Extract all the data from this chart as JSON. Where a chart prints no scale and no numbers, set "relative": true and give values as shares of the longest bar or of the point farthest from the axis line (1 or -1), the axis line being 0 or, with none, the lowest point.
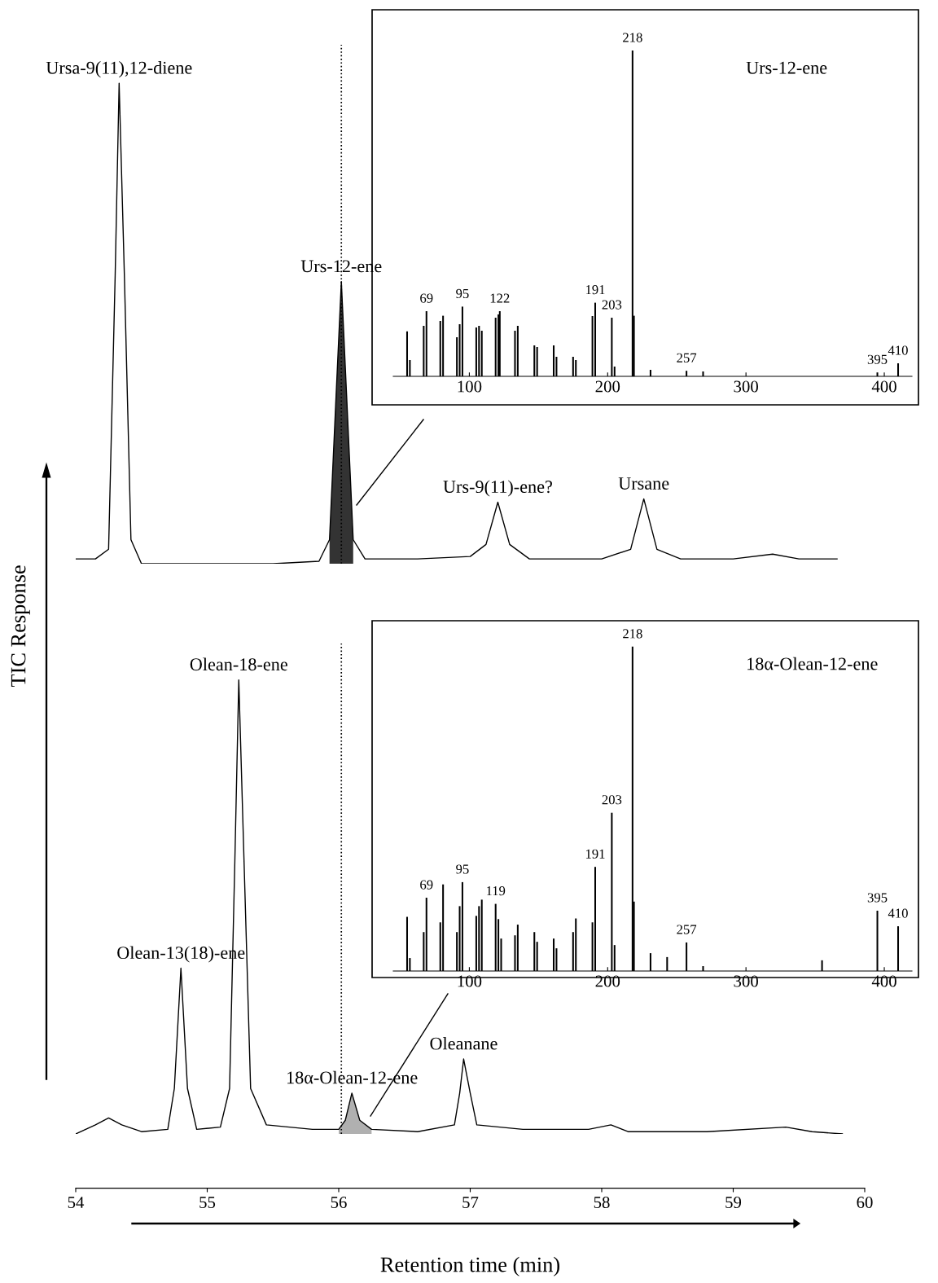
{
  "chart_data": [
    {
      "type": "line",
      "relative": true,
      "xlim": [
        54,
        60
      ],
      "tick_labels": false,
      "ylabel": "TIC Response",
      "series": [
        {
          "type": "line",
          "color": "#000000",
          "x": [
            54.0,
            54.15,
            54.25,
            54.3,
            54.33,
            54.37,
            54.42,
            54.5,
            55.0,
            55.5,
            55.85,
            55.93,
            55.98,
            56.02,
            56.06,
            56.11,
            56.2,
            56.6,
            57.0,
            57.12,
            57.21,
            57.3,
            57.45,
            58.0,
            58.22,
            58.32,
            58.42,
            58.6,
            59.0,
            59.3,
            59.5,
            59.79
          ],
          "values": [
            0.01,
            0.01,
            0.03,
            0.6,
            1.0,
            0.6,
            0.05,
            0.0,
            0.0,
            0.0,
            0.005,
            0.05,
            0.35,
            0.587,
            0.35,
            0.05,
            0.01,
            0.01,
            0.015,
            0.04,
            0.128,
            0.04,
            0.01,
            0.01,
            0.03,
            0.135,
            0.03,
            0.01,
            0.01,
            0.02,
            0.01,
            0.01
          ]
        },
        {
          "type": "area",
          "color": "#333333",
          "x": [
            55.93,
            55.98,
            56.02,
            56.06,
            56.11
          ],
          "values": [
            0.05,
            0.35,
            0.587,
            0.35,
            0.05
          ]
        }
      ],
      "ref_lines": [
        {
          "axis": "x",
          "value": 56.02,
          "color": "#000000",
          "line_style": "dotted"
        }
      ],
      "annotations": [
        {
          "text": "Ursa-9(11),12-diene",
          "x": 54.33,
          "y": 1.0
        },
        {
          "text": "Urs-12-ene",
          "x": 56.02,
          "y": 0.587
        },
        {
          "text": "Urs-9(11)-ene?",
          "x": 57.21,
          "y": 0.128
        },
        {
          "text": "Ursane",
          "x": 58.32,
          "y": 0.135
        }
      ]
    },
    {
      "type": "bar",
      "relative": true,
      "xlim": [
        45,
        420
      ],
      "xticks": [
        100,
        200,
        300,
        400
      ],
      "tick_labels": "x",
      "title": "Urs-12-ene",
      "color": "#000000",
      "x": [
        55,
        57,
        67,
        69,
        79,
        81,
        91,
        93,
        95,
        105,
        107,
        109,
        119,
        121,
        122,
        133,
        135,
        147,
        149,
        161,
        163,
        175,
        177,
        189,
        191,
        203,
        205,
        218,
        219,
        231,
        257,
        269,
        395,
        410
      ],
      "values": [
        0.138,
        0.05,
        0.155,
        0.2,
        0.17,
        0.186,
        0.12,
        0.16,
        0.214,
        0.15,
        0.155,
        0.14,
        0.18,
        0.19,
        0.2,
        0.14,
        0.155,
        0.095,
        0.09,
        0.095,
        0.06,
        0.06,
        0.05,
        0.185,
        0.226,
        0.18,
        0.03,
        1.0,
        0.186,
        0.02,
        0.017,
        0.015,
        0.012,
        0.04
      ],
      "annotations": [
        {
          "text": "218",
          "x": 218,
          "y": 1.0
        },
        {
          "text": "69",
          "x": 69,
          "y": 0.2
        },
        {
          "text": "95",
          "x": 95,
          "y": 0.214
        },
        {
          "text": "122",
          "x": 122,
          "y": 0.2
        },
        {
          "text": "191",
          "x": 191,
          "y": 0.226
        },
        {
          "text": "203",
          "x": 203,
          "y": 0.18
        },
        {
          "text": "257",
          "x": 257,
          "y": 0.017
        },
        {
          "text": "395",
          "x": 395,
          "y": 0.012
        },
        {
          "text": "410",
          "x": 410,
          "y": 0.04
        }
      ]
    },
    {
      "type": "line",
      "relative": true,
      "xlim": [
        54,
        60
      ],
      "xticks": [
        54,
        55,
        56,
        57,
        58,
        59,
        60
      ],
      "tick_labels": "x",
      "xlabel": "Retention time (min)",
      "series": [
        {
          "type": "line",
          "color": "#000000",
          "x": [
            54.0,
            54.15,
            54.25,
            54.35,
            54.5,
            54.7,
            54.75,
            54.8,
            54.85,
            54.92,
            55.1,
            55.17,
            55.21,
            55.24,
            55.28,
            55.33,
            55.45,
            55.8,
            56.0,
            56.05,
            56.1,
            56.16,
            56.25,
            56.6,
            56.88,
            56.92,
            56.95,
            57.0,
            57.05,
            57.4,
            57.9,
            58.07,
            58.2,
            58.8,
            59.4,
            59.6,
            59.83
          ],
          "values": [
            0.0,
            0.02,
            0.035,
            0.02,
            0.005,
            0.01,
            0.1,
            0.365,
            0.1,
            0.01,
            0.015,
            0.1,
            0.6,
            1.0,
            0.6,
            0.1,
            0.02,
            0.01,
            0.01,
            0.03,
            0.09,
            0.03,
            0.01,
            0.005,
            0.02,
            0.09,
            0.165,
            0.09,
            0.02,
            0.01,
            0.01,
            0.02,
            0.005,
            0.005,
            0.015,
            0.005,
            0.0
          ]
        },
        {
          "type": "area",
          "color": "#b0b0b0",
          "x": [
            56.0,
            56.05,
            56.1,
            56.16,
            56.25
          ],
          "values": [
            0.01,
            0.03,
            0.09,
            0.03,
            0.01
          ]
        }
      ],
      "ref_lines": [
        {
          "axis": "x",
          "value": 56.02,
          "color": "#000000",
          "line_style": "dotted"
        }
      ],
      "annotations": [
        {
          "text": "Olean-13(18)-ene",
          "x": 54.8,
          "y": 0.365
        },
        {
          "text": "Olean-18-ene",
          "x": 55.24,
          "y": 1.0
        },
        {
          "text": "18α-Olean-12-ene",
          "x": 56.1,
          "y": 0.09
        },
        {
          "text": "Oleanane",
          "x": 56.95,
          "y": 0.165
        }
      ]
    },
    {
      "type": "bar",
      "relative": true,
      "xlim": [
        45,
        420
      ],
      "xticks": [
        100,
        200,
        300,
        400
      ],
      "tick_labels": "x",
      "title": "18α-Olean-12-ene",
      "color": "#000000",
      "x": [
        55,
        57,
        67,
        69,
        79,
        81,
        91,
        93,
        95,
        105,
        107,
        109,
        119,
        121,
        123,
        133,
        135,
        147,
        149,
        161,
        163,
        175,
        177,
        189,
        191,
        203,
        205,
        218,
        219,
        231,
        243,
        257,
        269,
        355,
        395,
        410
      ],
      "values": [
        0.167,
        0.04,
        0.12,
        0.226,
        0.15,
        0.267,
        0.12,
        0.2,
        0.274,
        0.17,
        0.2,
        0.22,
        0.207,
        0.16,
        0.1,
        0.11,
        0.143,
        0.12,
        0.09,
        0.1,
        0.07,
        0.12,
        0.162,
        0.15,
        0.321,
        0.488,
        0.08,
        1.0,
        0.214,
        0.055,
        0.043,
        0.088,
        0.015,
        0.033,
        0.186,
        0.138
      ],
      "annotations": [
        {
          "text": "218",
          "x": 218,
          "y": 1.0
        },
        {
          "text": "203",
          "x": 203,
          "y": 0.488
        },
        {
          "text": "191",
          "x": 191,
          "y": 0.321
        },
        {
          "text": "69",
          "x": 69,
          "y": 0.226
        },
        {
          "text": "95",
          "x": 95,
          "y": 0.274
        },
        {
          "text": "119",
          "x": 119,
          "y": 0.207
        },
        {
          "text": "257",
          "x": 257,
          "y": 0.088
        },
        {
          "text": "395",
          "x": 395,
          "y": 0.186
        },
        {
          "text": "410",
          "x": 410,
          "y": 0.138
        }
      ]
    }
  ]
}
